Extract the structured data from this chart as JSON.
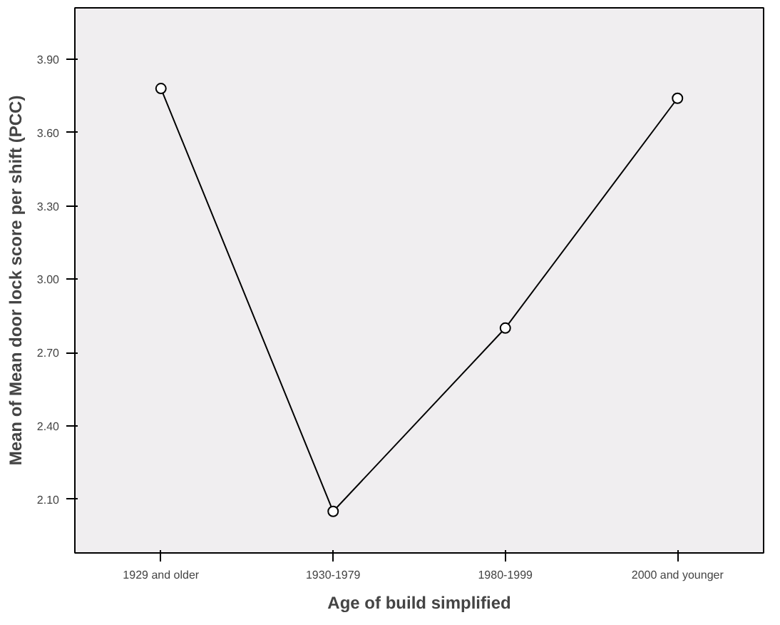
{
  "chart_data": {
    "type": "line",
    "xlabel": "Age of build simplified",
    "ylabel": "Mean of Mean door lock score per shift (PCC)",
    "categories": [
      "1929 and older",
      "1930-1979",
      "1980-1999",
      "2000 and younger"
    ],
    "series": [
      {
        "color": "#000000",
        "values": [
          3.78,
          2.05,
          2.8,
          3.74
        ]
      }
    ],
    "ylim": [
      1.88,
      4.11
    ],
    "yticks": [
      {
        "value": 2.1,
        "label": "2.10"
      },
      {
        "value": 2.4,
        "label": "2.40"
      },
      {
        "value": 2.7,
        "label": "2.70"
      },
      {
        "value": 3.0,
        "label": "3.00"
      },
      {
        "value": 3.3,
        "label": "3.30"
      },
      {
        "value": 3.6,
        "label": "3.60"
      },
      {
        "value": 3.9,
        "label": "3.90"
      }
    ],
    "marker": "circle",
    "grid": false
  }
}
